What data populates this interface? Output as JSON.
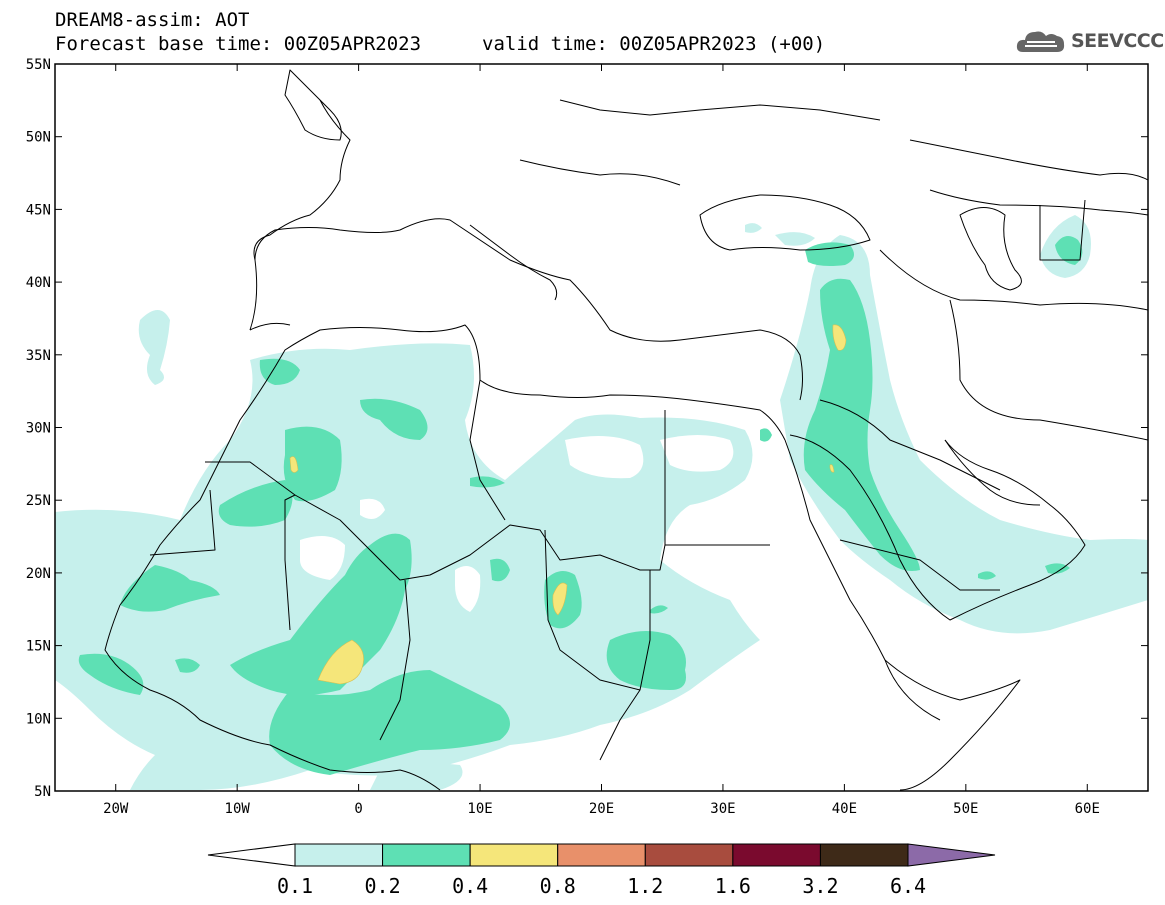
{
  "header": {
    "title_line1": "DREAM8-assim: AOT",
    "title_line2": "Forecast base time: 00Z05APR2023",
    "valid_time": "valid time: 00Z05APR2023 (+00)",
    "logo_text": "SEEVCCC",
    "logo_icon": "cloud-icon"
  },
  "map": {
    "lon_range": [
      -25,
      65
    ],
    "lat_range": [
      5,
      55
    ],
    "lat_labels": [
      "55N",
      "50N",
      "45N",
      "40N",
      "35N",
      "30N",
      "25N",
      "20N",
      "15N",
      "10N",
      "5N"
    ],
    "lat_values": [
      55,
      50,
      45,
      40,
      35,
      30,
      25,
      20,
      15,
      10,
      5
    ],
    "lon_labels": [
      "20W",
      "10W",
      "0",
      "10E",
      "20E",
      "30E",
      "40E",
      "50E",
      "60E"
    ],
    "lon_values": [
      -20,
      -10,
      0,
      10,
      20,
      30,
      40,
      50,
      60
    ]
  },
  "colorbar": {
    "labels": [
      "0.1",
      "0.2",
      "0.4",
      "0.8",
      "1.2",
      "1.6",
      "3.2",
      "6.4"
    ],
    "colors": [
      "#ffffff",
      "#c6f0ec",
      "#5ee0b4",
      "#f5e67a",
      "#e8906a",
      "#a84c3e",
      "#7a0a2e",
      "#3e2a18",
      "#8c6aa8"
    ]
  },
  "colors": {
    "level1": "#c6f0ec",
    "level2": "#5ee0b4",
    "level3": "#f5e67a"
  }
}
